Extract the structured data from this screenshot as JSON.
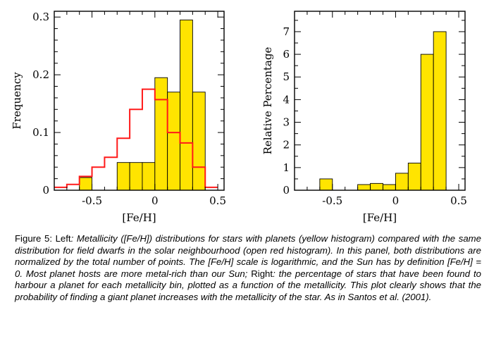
{
  "chart_data": [
    {
      "type": "bar",
      "xlabel": "[Fe/H]",
      "ylabel": "Frequency",
      "xlim": [
        -0.8,
        0.55
      ],
      "ylim": [
        0,
        0.31
      ],
      "xticks": [
        -0.5,
        0,
        0.5
      ],
      "xtick_labels": [
        "-0.5",
        "0",
        "0.5"
      ],
      "yticks": [
        0,
        0.1,
        0.2,
        0.3
      ],
      "ytick_labels": [
        "0",
        "0.1",
        "0.2",
        "0.3"
      ],
      "bin_width": 0.1,
      "series": [
        {
          "style": "filled histogram",
          "color": "#ffe400",
          "bins": [
            {
              "x0": -0.6,
              "x1": -0.5,
              "value": 0.022
            },
            {
              "x0": -0.3,
              "x1": -0.2,
              "value": 0.048
            },
            {
              "x0": -0.2,
              "x1": -0.1,
              "value": 0.048
            },
            {
              "x0": -0.1,
              "x1": 0.0,
              "value": 0.048
            },
            {
              "x0": 0.0,
              "x1": 0.1,
              "value": 0.195
            },
            {
              "x0": 0.1,
              "x1": 0.2,
              "value": 0.17
            },
            {
              "x0": 0.2,
              "x1": 0.3,
              "value": 0.295
            },
            {
              "x0": 0.3,
              "x1": 0.4,
              "value": 0.17
            }
          ]
        },
        {
          "style": "open histogram",
          "color": "#ff1a1a",
          "bins": [
            {
              "x0": -0.8,
              "x1": -0.7,
              "value": 0.005
            },
            {
              "x0": -0.7,
              "x1": -0.6,
              "value": 0.01
            },
            {
              "x0": -0.6,
              "x1": -0.5,
              "value": 0.024
            },
            {
              "x0": -0.5,
              "x1": -0.4,
              "value": 0.04
            },
            {
              "x0": -0.4,
              "x1": -0.3,
              "value": 0.057
            },
            {
              "x0": -0.3,
              "x1": -0.2,
              "value": 0.09
            },
            {
              "x0": -0.2,
              "x1": -0.1,
              "value": 0.14
            },
            {
              "x0": -0.1,
              "x1": 0.0,
              "value": 0.175
            },
            {
              "x0": 0.0,
              "x1": 0.1,
              "value": 0.157
            },
            {
              "x0": 0.1,
              "x1": 0.2,
              "value": 0.1
            },
            {
              "x0": 0.2,
              "x1": 0.3,
              "value": 0.082
            },
            {
              "x0": 0.3,
              "x1": 0.4,
              "value": 0.04
            },
            {
              "x0": 0.4,
              "x1": 0.5,
              "value": 0.005
            }
          ]
        }
      ]
    },
    {
      "type": "bar",
      "xlabel": "[Fe/H]",
      "ylabel": "Relative Percentage",
      "xlim": [
        -0.8,
        0.55
      ],
      "ylim": [
        0,
        7.9
      ],
      "xticks": [
        -0.5,
        0,
        0.5
      ],
      "xtick_labels": [
        "-0.5",
        "0",
        "0.5"
      ],
      "yticks": [
        0,
        1,
        2,
        3,
        4,
        5,
        6,
        7
      ],
      "ytick_labels": [
        "0",
        "1",
        "2",
        "3",
        "4",
        "5",
        "6",
        "7"
      ],
      "bin_width": 0.1,
      "series": [
        {
          "style": "filled histogram",
          "color": "#ffe400",
          "bins": [
            {
              "x0": -0.6,
              "x1": -0.5,
              "value": 0.5
            },
            {
              "x0": -0.3,
              "x1": -0.2,
              "value": 0.25
            },
            {
              "x0": -0.2,
              "x1": -0.1,
              "value": 0.3
            },
            {
              "x0": -0.1,
              "x1": 0.0,
              "value": 0.25
            },
            {
              "x0": 0.0,
              "x1": 0.1,
              "value": 0.75
            },
            {
              "x0": 0.1,
              "x1": 0.2,
              "value": 1.2
            },
            {
              "x0": 0.2,
              "x1": 0.3,
              "value": 6.0
            },
            {
              "x0": 0.3,
              "x1": 0.4,
              "value": 7.0
            }
          ]
        }
      ]
    }
  ],
  "caption": {
    "fig_label": "Figure 5:",
    "left_label": " Left",
    "part1": ": Metallicity ([Fe/H]) distributions for stars with planets (yellow histogram) compared with the same distribution for field dwarfs in the solar neighbourhood (open red histogram). In this panel, both distributions are normalized by the total number of points. The [Fe/H] scale is logarithmic, and the Sun has by definition [Fe/H] = 0. Most planet hosts are more metal-rich than our Sun; ",
    "right_label": "Right",
    "part2": ": the percentage of stars that have been found to harbour a planet for each metallicity bin, plotted as a function of the metallicity. This plot clearly shows that the probability of finding a giant planet increases with the metallicity of the star. As in Santos et al. (2001)."
  }
}
